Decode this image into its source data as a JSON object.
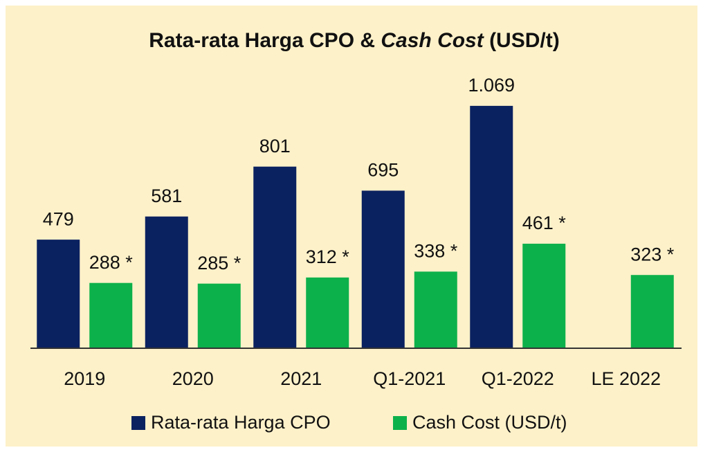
{
  "chart_data": {
    "type": "bar",
    "title": [
      "Rata-rata Harga CPO & ",
      "Cash Cost",
      " (USD/t)"
    ],
    "categories": [
      "2019",
      "2020",
      "2021",
      "Q1-2021",
      "Q1-2022",
      "LE 2022"
    ],
    "series": [
      {
        "name": "Rata-rata Harga CPO",
        "color": "#0b2260",
        "values": [
          479,
          581,
          801,
          695,
          1069,
          null
        ],
        "value_labels": [
          "479",
          "581",
          "801",
          "695",
          "1.069",
          null
        ]
      },
      {
        "name": "Cash Cost (USD/t)",
        "color": "#0db14b",
        "values": [
          288,
          285,
          312,
          338,
          461,
          323
        ],
        "value_labels": [
          "288 *",
          "285 *",
          "312 *",
          "338 *",
          "461 *",
          "323 *"
        ]
      }
    ],
    "ylim": [
      0,
      1200
    ]
  }
}
